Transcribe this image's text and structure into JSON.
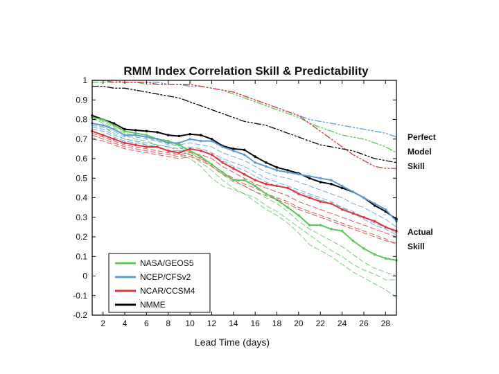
{
  "chart_data": {
    "type": "line",
    "title": "RMM Index Correlation Skill & Predictability",
    "xlabel": "Lead Time (days)",
    "ylabel": "",
    "xlim": [
      1,
      29
    ],
    "ylim": [
      -0.2,
      1
    ],
    "x_ticks": [
      2,
      4,
      6,
      8,
      10,
      12,
      14,
      16,
      18,
      20,
      22,
      24,
      26,
      28
    ],
    "y_ticks": [
      -0.2,
      -0.1,
      0,
      0.1,
      0.2,
      0.3,
      0.4,
      0.5,
      0.6,
      0.7,
      0.8,
      0.9,
      1
    ],
    "x_tick_labels": [
      "2",
      "4",
      "6",
      "8",
      "10",
      "12",
      "14",
      "16",
      "18",
      "20",
      "22",
      "24",
      "26",
      "28"
    ],
    "y_tick_labels": [
      "-0.2",
      "-0.1",
      "0",
      "0.1",
      "0.2",
      "0.3",
      "0.4",
      "0.5",
      "0.6",
      "0.7",
      "0.8",
      "0.9",
      "1"
    ],
    "legend_position": "bottom-left",
    "grid": false,
    "legend": [
      {
        "label": "NASA/GEOS5",
        "color": "#5ac85a"
      },
      {
        "label": "NCEP/CFSv2",
        "color": "#5b9bd5"
      },
      {
        "label": "NCAR/CCSM4",
        "color": "#e0343a"
      },
      {
        "label": "NMME",
        "color": "#000000"
      }
    ],
    "x": [
      1,
      2,
      3,
      4,
      5,
      6,
      7,
      8,
      9,
      10,
      11,
      12,
      13,
      14,
      15,
      16,
      17,
      18,
      19,
      20,
      21,
      22,
      23,
      24,
      25,
      26,
      27,
      28,
      29
    ],
    "series": [
      {
        "name": "NMME",
        "model": "NMME",
        "kind": "actual",
        "color": "#000000",
        "values": [
          0.82,
          0.8,
          0.78,
          0.75,
          0.745,
          0.74,
          0.735,
          0.72,
          0.715,
          0.725,
          0.72,
          0.7,
          0.665,
          0.65,
          0.645,
          0.61,
          0.58,
          0.555,
          0.54,
          0.525,
          0.5,
          0.48,
          0.47,
          0.45,
          0.43,
          0.4,
          0.36,
          0.33,
          0.29
        ]
      },
      {
        "name": "NASA/GEOS5",
        "model": "NASA/GEOS5",
        "kind": "actual",
        "color": "#5ac85a",
        "values": [
          0.81,
          0.8,
          0.77,
          0.74,
          0.73,
          0.72,
          0.7,
          0.69,
          0.67,
          0.64,
          0.61,
          0.57,
          0.53,
          0.49,
          0.49,
          0.46,
          0.42,
          0.39,
          0.35,
          0.31,
          0.26,
          0.26,
          0.24,
          0.23,
          0.18,
          0.14,
          0.11,
          0.09,
          0.08
        ]
      },
      {
        "name": "NCEP/CFSv2",
        "model": "NCEP/CFSv2",
        "kind": "actual",
        "color": "#5b9bd5",
        "values": [
          0.78,
          0.77,
          0.75,
          0.72,
          0.72,
          0.71,
          0.7,
          0.68,
          0.68,
          0.7,
          0.69,
          0.69,
          0.66,
          0.64,
          0.62,
          0.58,
          0.56,
          0.54,
          0.53,
          0.52,
          0.51,
          0.5,
          0.49,
          0.46,
          0.43,
          0.4,
          0.37,
          0.34,
          0.28
        ]
      },
      {
        "name": "NCAR/CCSM4",
        "model": "NCAR/CCSM4",
        "kind": "actual",
        "color": "#e0343a",
        "values": [
          0.74,
          0.72,
          0.7,
          0.68,
          0.67,
          0.66,
          0.66,
          0.64,
          0.63,
          0.65,
          0.64,
          0.62,
          0.58,
          0.55,
          0.52,
          0.49,
          0.47,
          0.46,
          0.45,
          0.42,
          0.4,
          0.38,
          0.37,
          0.34,
          0.32,
          0.3,
          0.28,
          0.25,
          0.23
        ]
      },
      {
        "name": "",
        "model": "NASA/GEOS5",
        "kind": "member",
        "color": "#5ac85a",
        "values": [
          0.81,
          0.78,
          0.75,
          0.72,
          0.7,
          0.69,
          0.67,
          0.66,
          0.64,
          0.62,
          0.58,
          0.54,
          0.49,
          0.45,
          0.42,
          0.4,
          0.36,
          0.33,
          0.29,
          0.25,
          0.21,
          0.17,
          0.13,
          0.1,
          0.06,
          0.03,
          0.01,
          -0.02,
          -0.02
        ]
      },
      {
        "name": "",
        "model": "NASA/GEOS5",
        "kind": "member",
        "color": "#5ac85a",
        "values": [
          0.78,
          0.76,
          0.73,
          0.7,
          0.69,
          0.67,
          0.66,
          0.64,
          0.62,
          0.6,
          0.56,
          0.5,
          0.46,
          0.44,
          0.42,
          0.38,
          0.34,
          0.31,
          0.27,
          0.22,
          0.16,
          0.13,
          0.1,
          0.06,
          0.02,
          -0.01,
          -0.04,
          -0.07,
          -0.11
        ]
      },
      {
        "name": "",
        "model": "NASA/GEOS5",
        "kind": "member",
        "color": "#5ac85a",
        "values": [
          0.8,
          0.79,
          0.76,
          0.73,
          0.72,
          0.71,
          0.69,
          0.68,
          0.66,
          0.63,
          0.6,
          0.56,
          0.52,
          0.48,
          0.46,
          0.43,
          0.4,
          0.37,
          0.33,
          0.28,
          0.24,
          0.21,
          0.18,
          0.15,
          0.11,
          0.07,
          0.04,
          0.02,
          0.0
        ]
      },
      {
        "name": "",
        "model": "NCEP/CFSv2",
        "kind": "member",
        "color": "#5b9bd5",
        "values": [
          0.76,
          0.75,
          0.72,
          0.7,
          0.69,
          0.68,
          0.67,
          0.66,
          0.65,
          0.66,
          0.65,
          0.63,
          0.6,
          0.58,
          0.56,
          0.53,
          0.5,
          0.48,
          0.46,
          0.44,
          0.42,
          0.4,
          0.38,
          0.35,
          0.33,
          0.3,
          0.27,
          0.25,
          0.22
        ]
      },
      {
        "name": "",
        "model": "NCEP/CFSv2",
        "kind": "member",
        "color": "#5b9bd5",
        "values": [
          0.77,
          0.76,
          0.74,
          0.71,
          0.71,
          0.7,
          0.69,
          0.67,
          0.67,
          0.68,
          0.67,
          0.66,
          0.63,
          0.61,
          0.59,
          0.56,
          0.53,
          0.51,
          0.5,
          0.48,
          0.46,
          0.44,
          0.42,
          0.4,
          0.37,
          0.35,
          0.32,
          0.29,
          0.25
        ]
      },
      {
        "name": "",
        "model": "NCEP/CFSv2",
        "kind": "member",
        "color": "#5b9bd5",
        "values": [
          0.75,
          0.74,
          0.71,
          0.69,
          0.68,
          0.67,
          0.66,
          0.64,
          0.64,
          0.65,
          0.64,
          0.62,
          0.59,
          0.56,
          0.54,
          0.51,
          0.48,
          0.46,
          0.45,
          0.43,
          0.41,
          0.39,
          0.37,
          0.35,
          0.32,
          0.29,
          0.26,
          0.24,
          0.21
        ]
      },
      {
        "name": "",
        "model": "NCAR/CCSM4",
        "kind": "member",
        "color": "#e0343a",
        "values": [
          0.73,
          0.71,
          0.69,
          0.67,
          0.66,
          0.65,
          0.64,
          0.63,
          0.62,
          0.63,
          0.62,
          0.6,
          0.56,
          0.53,
          0.5,
          0.47,
          0.45,
          0.43,
          0.41,
          0.38,
          0.36,
          0.34,
          0.32,
          0.3,
          0.28,
          0.26,
          0.24,
          0.22,
          0.2
        ]
      },
      {
        "name": "",
        "model": "NCAR/CCSM4",
        "kind": "member",
        "color": "#e0343a",
        "values": [
          0.72,
          0.7,
          0.68,
          0.66,
          0.65,
          0.64,
          0.63,
          0.62,
          0.61,
          0.62,
          0.6,
          0.57,
          0.53,
          0.5,
          0.47,
          0.45,
          0.42,
          0.4,
          0.38,
          0.35,
          0.33,
          0.31,
          0.29,
          0.27,
          0.25,
          0.23,
          0.21,
          0.19,
          0.16
        ]
      },
      {
        "name": "",
        "model": "NCAR/CCSM4",
        "kind": "member",
        "color": "#e0343a",
        "values": [
          0.7,
          0.69,
          0.67,
          0.65,
          0.64,
          0.63,
          0.62,
          0.61,
          0.6,
          0.61,
          0.59,
          0.56,
          0.52,
          0.49,
          0.46,
          0.43,
          0.41,
          0.39,
          0.37,
          0.34,
          0.32,
          0.3,
          0.28,
          0.26,
          0.24,
          0.22,
          0.2,
          0.18,
          0.17
        ]
      },
      {
        "name": "",
        "model": "NASA/GEOS5",
        "kind": "perfect",
        "color": "#5ac85a",
        "values": [
          0.99,
          0.99,
          0.99,
          0.99,
          0.99,
          0.98,
          0.98,
          0.98,
          0.98,
          0.97,
          0.97,
          0.96,
          0.95,
          0.93,
          0.91,
          0.89,
          0.87,
          0.85,
          0.83,
          0.81,
          0.78,
          0.76,
          0.74,
          0.72,
          0.71,
          0.7,
          0.68,
          0.66,
          0.63
        ]
      },
      {
        "name": "",
        "model": "NCEP/CFSv2",
        "kind": "perfect",
        "color": "#5b9bd5",
        "values": [
          1.0,
          1.0,
          1.0,
          0.99,
          0.99,
          0.99,
          0.99,
          0.98,
          0.98,
          0.97,
          0.97,
          0.96,
          0.95,
          0.94,
          0.92,
          0.9,
          0.88,
          0.86,
          0.84,
          0.82,
          0.8,
          0.79,
          0.78,
          0.77,
          0.76,
          0.75,
          0.74,
          0.73,
          0.71
        ]
      },
      {
        "name": "",
        "model": "NCAR/CCSM4",
        "kind": "perfect",
        "color": "#e0343a",
        "values": [
          1.0,
          1.0,
          0.99,
          0.99,
          0.99,
          0.99,
          0.98,
          0.98,
          0.98,
          0.98,
          0.97,
          0.96,
          0.95,
          0.94,
          0.92,
          0.9,
          0.88,
          0.86,
          0.84,
          0.82,
          0.78,
          0.74,
          0.7,
          0.66,
          0.62,
          0.59,
          0.56,
          0.55,
          0.55
        ]
      },
      {
        "name": "",
        "model": "NMME",
        "kind": "perfect",
        "color": "#000000",
        "values": [
          0.97,
          0.97,
          0.96,
          0.96,
          0.95,
          0.94,
          0.93,
          0.92,
          0.91,
          0.89,
          0.87,
          0.85,
          0.83,
          0.81,
          0.79,
          0.78,
          0.77,
          0.75,
          0.73,
          0.71,
          0.69,
          0.67,
          0.66,
          0.65,
          0.64,
          0.62,
          0.6,
          0.59,
          0.58
        ]
      }
    ]
  },
  "labels": {
    "perfect_line1": "Perfect",
    "perfect_line2": "Model",
    "perfect_line3": "Skill",
    "actual_line1": "Actual",
    "actual_line2": "Skill"
  }
}
